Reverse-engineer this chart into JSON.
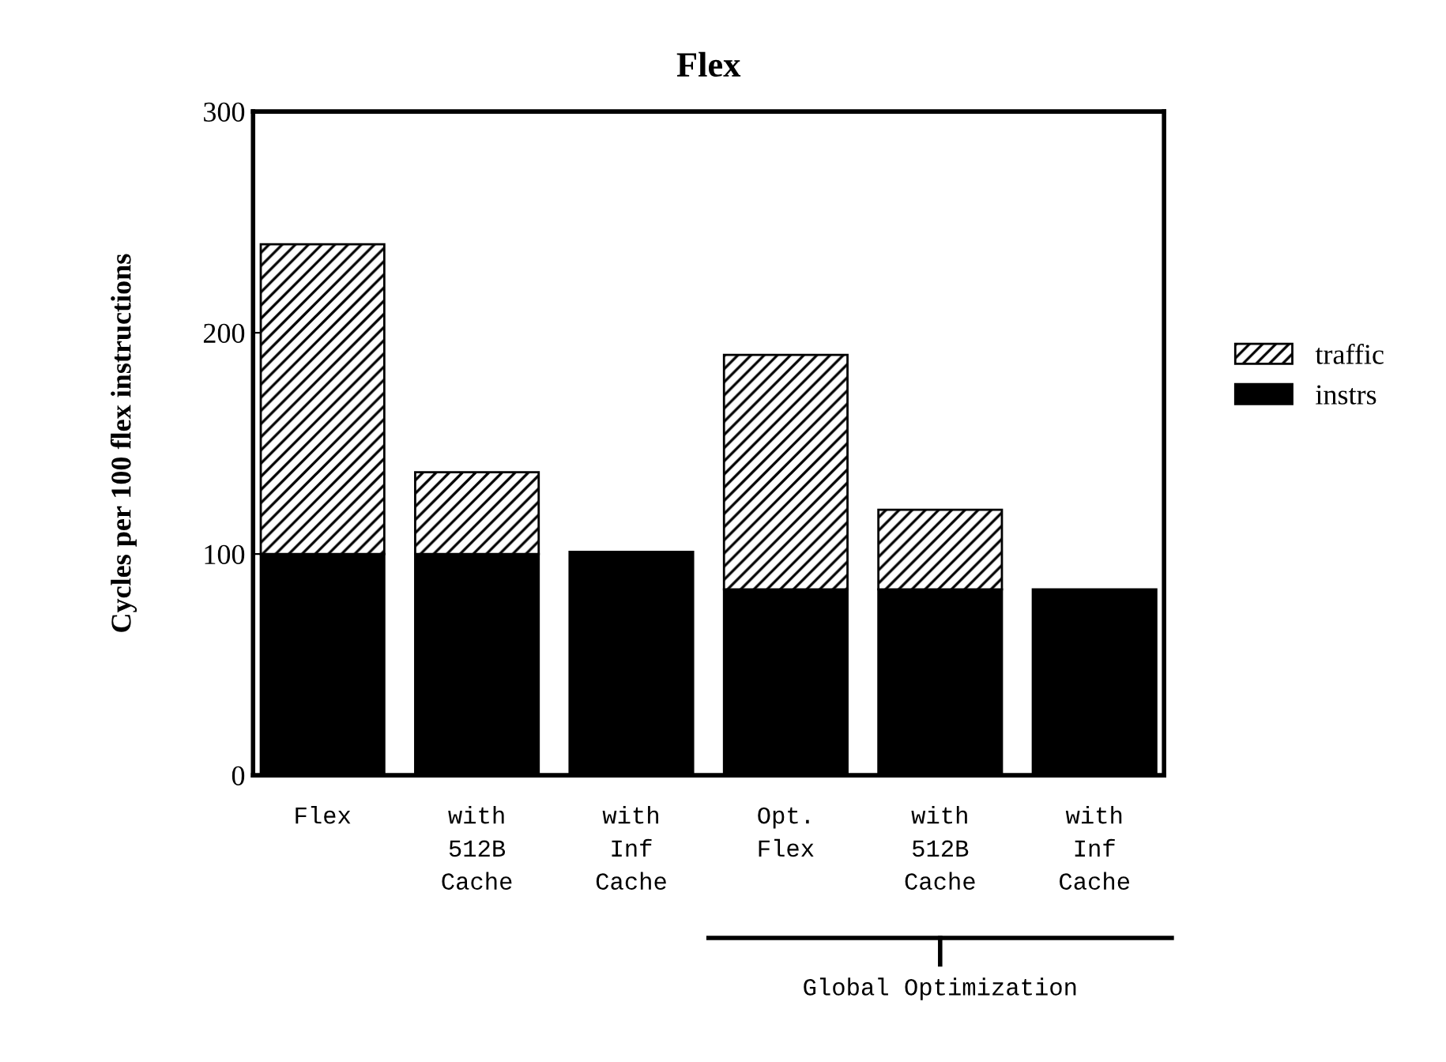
{
  "chart_data": {
    "type": "bar",
    "title": "Flex",
    "ylabel": "Cycles per 100 flex instructions",
    "categories": [
      "Flex",
      "with\n512B\nCache",
      "with\nInf\nCache",
      "Opt.\nFlex",
      "with\n512B\nCache",
      "with\nInf\nCache"
    ],
    "stacked": true,
    "series": [
      {
        "name": "instrs",
        "color": "#000000",
        "values": [
          100,
          100,
          101,
          84,
          84,
          84
        ]
      },
      {
        "name": "traffic",
        "color": "#000000",
        "values": [
          140,
          37,
          null,
          106,
          36,
          null
        ]
      }
    ],
    "ylim": [
      0,
      300
    ],
    "yticks": [
      0,
      100,
      200,
      300
    ],
    "grid": false,
    "legend": "right",
    "annotations": [
      "Global Optimization"
    ]
  }
}
